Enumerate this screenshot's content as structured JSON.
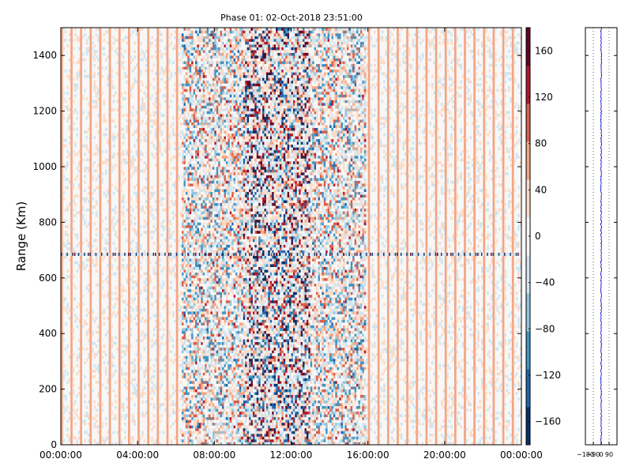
{
  "chart_data": {
    "type": "heatmap",
    "title": "Phase 01: 02-Oct-2018 23:51:00",
    "ylabel": "Range (Km)",
    "xlabel": "",
    "x_range_hours": [
      0,
      24
    ],
    "ylim": [
      0,
      1500
    ],
    "x_ticks": [
      "00:00:00",
      "04:00:00",
      "08:00:00",
      "12:00:00",
      "16:00:00",
      "20:00:00",
      "00:00:00"
    ],
    "y_ticks": [
      0,
      200,
      400,
      600,
      800,
      1000,
      1200,
      1400
    ],
    "colorbar": {
      "range": [
        -180,
        180
      ],
      "ticks": [
        -160,
        -120,
        -80,
        -40,
        0,
        40,
        80,
        120,
        160
      ],
      "colors": [
        "#08306b",
        "#2166ac",
        "#4393c3",
        "#92c5de",
        "#d1e5f0",
        "#f7f7f7",
        "#fddbc7",
        "#f4a582",
        "#d6604d",
        "#b2182b",
        "#67001f"
      ]
    },
    "features": {
      "active_interval_hours": [
        6.3,
        15.9
      ],
      "strong_interval_hours": [
        9.5,
        13.0
      ],
      "interference_range_km": 685,
      "quiet_background": "near 0 degrees with faint orange (~60) vertical streaks"
    },
    "side_panel": {
      "type": "line",
      "x_ticks": [
        "−180",
        "−90",
        "0",
        "90"
      ],
      "xlim": [
        -180,
        180
      ],
      "ylim": [
        0,
        1500
      ],
      "profile_mean": 0,
      "grid": "dotted vertical"
    }
  }
}
